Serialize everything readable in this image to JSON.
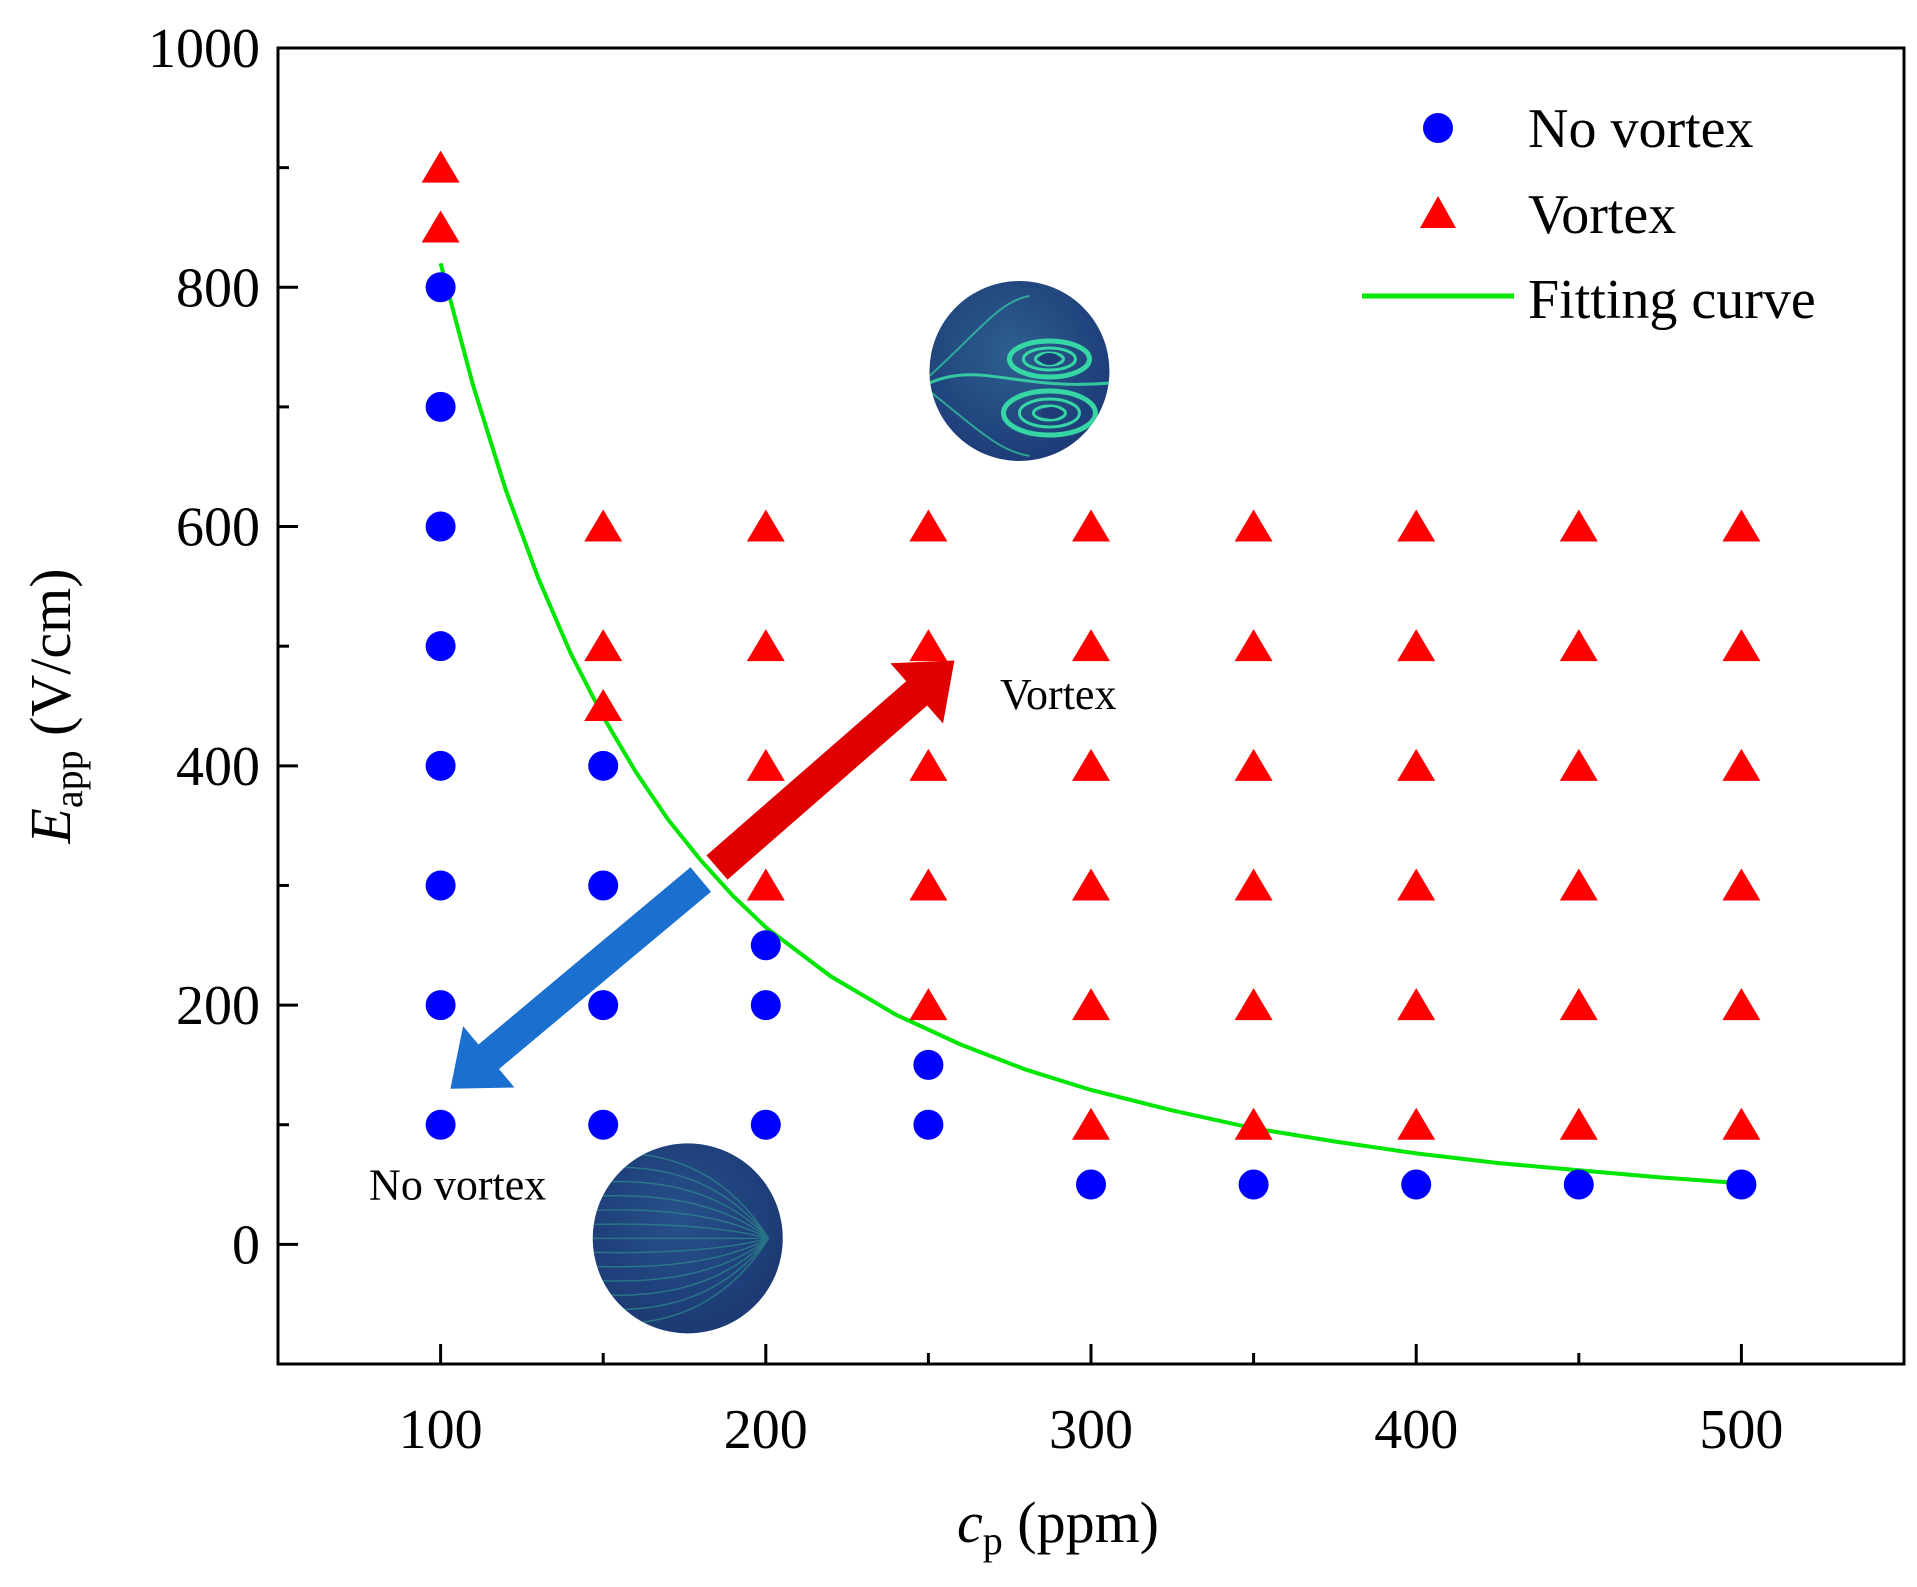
{
  "chart_data": {
    "type": "scatter",
    "xlabel": {
      "var": "c",
      "sub": "p",
      "unit": "(ppm)"
    },
    "ylabel": {
      "var": "E",
      "sub": "app",
      "unit": "(V/cm)"
    },
    "xlim": [
      50,
      550
    ],
    "ylim": [
      -100,
      1000
    ],
    "xticks": [
      100,
      200,
      300,
      400,
      500
    ],
    "yticks": [
      0,
      200,
      400,
      600,
      800,
      1000
    ],
    "legend": [
      "No vortex",
      "Vortex",
      "Fitting curve"
    ],
    "legend_position": "top-right",
    "colors": {
      "no_vortex": "#0000ff",
      "vortex": "#ff0000",
      "fit": "#00e600",
      "arrow_up": "#e00000",
      "arrow_down": "#1a6fcf",
      "disk": "#23467f",
      "vortex_swirl": "#39e6a8"
    },
    "series": [
      {
        "name": "No vortex",
        "marker": "circle",
        "points": [
          [
            100,
            800
          ],
          [
            100,
            700
          ],
          [
            100,
            600
          ],
          [
            100,
            500
          ],
          [
            100,
            400
          ],
          [
            100,
            300
          ],
          [
            100,
            200
          ],
          [
            100,
            100
          ],
          [
            150,
            400
          ],
          [
            150,
            300
          ],
          [
            150,
            200
          ],
          [
            150,
            100
          ],
          [
            200,
            250
          ],
          [
            200,
            200
          ],
          [
            200,
            100
          ],
          [
            250,
            150
          ],
          [
            250,
            100
          ],
          [
            300,
            50
          ],
          [
            350,
            50
          ],
          [
            400,
            50
          ],
          [
            450,
            50
          ],
          [
            500,
            50
          ]
        ]
      },
      {
        "name": "Vortex",
        "marker": "triangle",
        "points": [
          [
            100,
            900
          ],
          [
            100,
            850
          ],
          [
            150,
            600
          ],
          [
            150,
            500
          ],
          [
            150,
            450
          ],
          [
            200,
            600
          ],
          [
            200,
            500
          ],
          [
            200,
            400
          ],
          [
            200,
            300
          ],
          [
            250,
            600
          ],
          [
            250,
            500
          ],
          [
            250,
            400
          ],
          [
            250,
            300
          ],
          [
            250,
            200
          ],
          [
            300,
            600
          ],
          [
            300,
            500
          ],
          [
            300,
            400
          ],
          [
            300,
            300
          ],
          [
            300,
            200
          ],
          [
            300,
            100
          ],
          [
            350,
            600
          ],
          [
            350,
            500
          ],
          [
            350,
            400
          ],
          [
            350,
            300
          ],
          [
            350,
            200
          ],
          [
            350,
            100
          ],
          [
            400,
            600
          ],
          [
            400,
            500
          ],
          [
            400,
            400
          ],
          [
            400,
            300
          ],
          [
            400,
            200
          ],
          [
            400,
            100
          ],
          [
            450,
            600
          ],
          [
            450,
            500
          ],
          [
            450,
            400
          ],
          [
            450,
            300
          ],
          [
            450,
            200
          ],
          [
            450,
            100
          ],
          [
            500,
            600
          ],
          [
            500,
            500
          ],
          [
            500,
            400
          ],
          [
            500,
            300
          ],
          [
            500,
            200
          ],
          [
            500,
            100
          ]
        ]
      },
      {
        "name": "Fitting curve",
        "type": "line",
        "x": [
          100,
          110,
          120,
          130,
          140,
          150,
          160,
          170,
          180,
          190,
          200,
          220,
          240,
          260,
          280,
          300,
          325,
          350,
          375,
          400,
          425,
          450,
          475,
          500
        ],
        "y": [
          820,
          718,
          631,
          557,
          494,
          441,
          395,
          355,
          321,
          291,
          265,
          224,
          192,
          167,
          146,
          129,
          112,
          97,
          86,
          76,
          68,
          62,
          56,
          51
        ]
      }
    ],
    "annotations": [
      {
        "text": "Vortex",
        "x": 272,
        "y": 460
      },
      {
        "text": "No vortex",
        "x": 78,
        "y": 50
      }
    ],
    "arrows": [
      {
        "name": "vortex-direction",
        "from": [
          185,
          315
        ],
        "to": [
          258,
          488
        ]
      },
      {
        "name": "no-vortex-direction",
        "from": [
          180,
          305
        ],
        "to": [
          103,
          130
        ]
      }
    ],
    "insets": [
      {
        "name": "vortex-inset",
        "kind": "vortex",
        "x": 278,
        "y": 730
      },
      {
        "name": "no-vortex-inset",
        "kind": "no-vortex",
        "x": 176,
        "y": 5
      }
    ]
  }
}
